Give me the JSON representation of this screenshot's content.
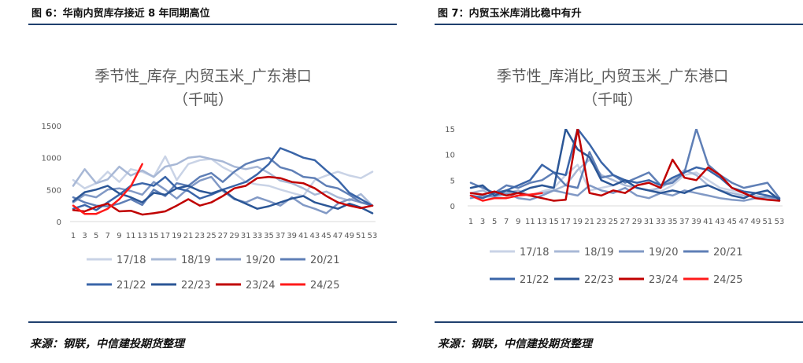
{
  "left": {
    "figure_title": "图 6：华南内贸库存接近 8 年同期高位",
    "source": "来源：钢联，中信建投期货整理"
  },
  "right": {
    "figure_title": "图 7：内贸玉米库消比稳中有升",
    "source": "来源：钢联，中信建投期货整理"
  },
  "chart_data": [
    {
      "type": "line",
      "title": "季节性_库存_内贸玉米_广东港口",
      "subtitle": "（千吨）",
      "x": [
        1,
        3,
        5,
        7,
        9,
        11,
        13,
        15,
        17,
        19,
        21,
        23,
        25,
        27,
        29,
        31,
        33,
        35,
        37,
        39,
        41,
        43,
        45,
        47,
        49,
        51,
        53
      ],
      "x_tick_labels": [
        "1",
        "3",
        "5",
        "7",
        "9",
        "11",
        "13",
        "15",
        "17",
        "19",
        "21",
        "23",
        "25",
        "27",
        "29",
        "31",
        "33",
        "35",
        "37",
        "39",
        "41",
        "43",
        "45",
        "47",
        "49",
        "51",
        "53"
      ],
      "ylim": [
        0,
        1500
      ],
      "y_ticks": [
        0,
        500,
        1000,
        1500
      ],
      "legend_position": "bottom",
      "series": [
        {
          "name": "17/18",
          "color": "#c9d3e6",
          "width": 2.5,
          "values": [
            650,
            520,
            600,
            780,
            620,
            820,
            780,
            700,
            1020,
            650,
            900,
            960,
            980,
            850,
            760,
            620,
            580,
            560,
            500,
            450,
            400,
            650,
            720,
            780,
            720,
            680,
            780
          ]
        },
        {
          "name": "18/19",
          "color": "#a8b8d6",
          "width": 2.5,
          "values": [
            560,
            820,
            600,
            660,
            860,
            720,
            800,
            700,
            860,
            900,
            1000,
            1020,
            980,
            940,
            860,
            820,
            860,
            760,
            640,
            600,
            520,
            420,
            470,
            380,
            330,
            430,
            250
          ]
        },
        {
          "name": "19/20",
          "color": "#8199c5",
          "width": 2.5,
          "values": [
            300,
            420,
            380,
            500,
            520,
            480,
            420,
            620,
            500,
            360,
            520,
            640,
            700,
            480,
            350,
            300,
            380,
            320,
            250,
            380,
            260,
            200,
            130,
            280,
            350,
            300,
            250
          ]
        },
        {
          "name": "20/21",
          "color": "#5f7fb6",
          "width": 2.5,
          "values": [
            380,
            300,
            250,
            240,
            280,
            350,
            260,
            500,
            400,
            600,
            560,
            700,
            760,
            620,
            780,
            900,
            960,
            1000,
            850,
            800,
            700,
            680,
            560,
            520,
            420,
            300,
            250
          ]
        },
        {
          "name": "21/22",
          "color": "#3a65a8",
          "width": 2.5,
          "values": [
            200,
            260,
            180,
            300,
            420,
            560,
            600,
            560,
            700,
            520,
            480,
            360,
            420,
            500,
            560,
            620,
            740,
            900,
            1150,
            1080,
            1000,
            960,
            800,
            650,
            450,
            350,
            250
          ]
        },
        {
          "name": "22/23",
          "color": "#2b5696",
          "width": 2.5,
          "values": [
            320,
            460,
            500,
            560,
            440,
            380,
            300,
            450,
            420,
            520,
            560,
            480,
            440,
            500,
            360,
            280,
            200,
            240,
            300,
            360,
            400,
            300,
            250,
            200,
            280,
            220,
            130
          ]
        },
        {
          "name": "23/24",
          "color": "#c00000",
          "width": 2.5,
          "values": [
            180,
            160,
            230,
            280,
            160,
            170,
            110,
            130,
            160,
            250,
            350,
            250,
            300,
            400,
            520,
            560,
            680,
            700,
            680,
            620,
            600,
            520,
            400,
            300,
            250,
            210,
            250
          ]
        },
        {
          "name": "24/25",
          "color": "#ff1a1a",
          "width": 2.5,
          "values": [
            250,
            120,
            120,
            200,
            350,
            550,
            900,
            null,
            null,
            null,
            null,
            null,
            null,
            null,
            null,
            null,
            null,
            null,
            null,
            null,
            null,
            null,
            null,
            null,
            null,
            null,
            null
          ]
        }
      ]
    },
    {
      "type": "line",
      "title": "季节性_库消比_内贸玉米_广东港口",
      "subtitle": "（千吨）",
      "x": [
        1,
        3,
        5,
        7,
        9,
        11,
        13,
        15,
        17,
        19,
        21,
        23,
        25,
        27,
        29,
        31,
        33,
        35,
        37,
        39,
        41,
        43,
        45,
        47,
        49,
        51,
        53
      ],
      "x_tick_labels": [
        "1",
        "3",
        "5",
        "7",
        "9",
        "11",
        "13",
        "15",
        "17",
        "19",
        "21",
        "23",
        "25",
        "27",
        "29",
        "31",
        "33",
        "35",
        "37",
        "39",
        "41",
        "43",
        "45",
        "47",
        "49",
        "51",
        "53"
      ],
      "ylim": [
        0,
        15
      ],
      "y_ticks": [
        0,
        5,
        10,
        15
      ],
      "legend_position": "bottom",
      "series": [
        {
          "name": "17/18",
          "color": "#c9d3e6",
          "width": 2.5,
          "values": [
            2.0,
            1.8,
            1.5,
            2.2,
            2.5,
            2.0,
            2.8,
            3.5,
            6.0,
            8.0,
            3.0,
            3.5,
            4.0,
            5.0,
            3.5,
            3.0,
            2.8,
            4.0,
            6.0,
            6.5,
            5.0,
            3.5,
            3.0,
            2.5,
            2.0,
            1.5,
            1.2
          ]
        },
        {
          "name": "18/19",
          "color": "#a8b8d6",
          "width": 2.5,
          "values": [
            2.5,
            3.0,
            2.0,
            2.5,
            3.0,
            2.0,
            2.5,
            3.0,
            4.0,
            7.0,
            9.0,
            6.0,
            5.0,
            4.0,
            3.5,
            3.0,
            3.5,
            5.0,
            7.0,
            6.0,
            4.0,
            3.0,
            2.5,
            2.0,
            1.8,
            1.5,
            1.0
          ]
        },
        {
          "name": "19/20",
          "color": "#8199c5",
          "width": 2.5,
          "values": [
            1.5,
            2.0,
            1.8,
            2.5,
            1.5,
            1.2,
            2.0,
            3.0,
            2.5,
            2.0,
            4.0,
            3.0,
            2.5,
            3.5,
            2.0,
            1.5,
            2.5,
            2.0,
            3.0,
            2.5,
            2.0,
            1.5,
            1.2,
            1.0,
            1.5,
            1.8,
            1.2
          ]
        },
        {
          "name": "20/21",
          "color": "#5f7fb6",
          "width": 2.5,
          "values": [
            4.5,
            3.5,
            2.5,
            4.0,
            3.5,
            4.5,
            5.0,
            6.5,
            4.0,
            3.5,
            10.5,
            5.5,
            6.0,
            4.5,
            5.5,
            6.5,
            4.0,
            4.5,
            6.5,
            15.0,
            8.0,
            6.0,
            4.5,
            3.5,
            4.0,
            4.5,
            1.5
          ]
        },
        {
          "name": "21/22",
          "color": "#3a65a8",
          "width": 2.5,
          "values": [
            2.0,
            1.5,
            2.5,
            3.0,
            4.0,
            5.0,
            8.0,
            6.5,
            6.0,
            15.0,
            12.0,
            8.5,
            6.0,
            5.0,
            4.5,
            5.0,
            4.0,
            5.5,
            6.5,
            7.5,
            7.0,
            5.5,
            3.5,
            2.8,
            2.5,
            2.0,
            1.5
          ]
        },
        {
          "name": "22/23",
          "color": "#2b5696",
          "width": 2.5,
          "values": [
            3.5,
            4.0,
            2.0,
            3.0,
            2.5,
            3.5,
            4.0,
            3.5,
            15.0,
            11.0,
            9.5,
            5.0,
            4.0,
            5.0,
            3.5,
            3.0,
            2.5,
            3.0,
            2.5,
            3.5,
            4.0,
            3.0,
            2.0,
            1.5,
            2.5,
            3.0,
            1.2
          ]
        },
        {
          "name": "23/24",
          "color": "#c00000",
          "width": 2.5,
          "values": [
            2.5,
            2.2,
            2.8,
            2.0,
            2.5,
            2.0,
            1.5,
            1.0,
            1.2,
            15.0,
            2.5,
            2.0,
            3.0,
            2.5,
            4.0,
            4.5,
            3.5,
            9.0,
            5.5,
            5.0,
            7.5,
            6.0,
            3.5,
            2.5,
            1.5,
            1.2,
            1.0
          ]
        },
        {
          "name": "24/25",
          "color": "#ff1a1a",
          "width": 2.5,
          "values": [
            2.0,
            1.0,
            1.5,
            1.5,
            2.0,
            2.2,
            2.5,
            null,
            null,
            null,
            null,
            null,
            null,
            null,
            null,
            null,
            null,
            null,
            null,
            null,
            null,
            null,
            null,
            null,
            null,
            null,
            null
          ]
        }
      ]
    }
  ]
}
